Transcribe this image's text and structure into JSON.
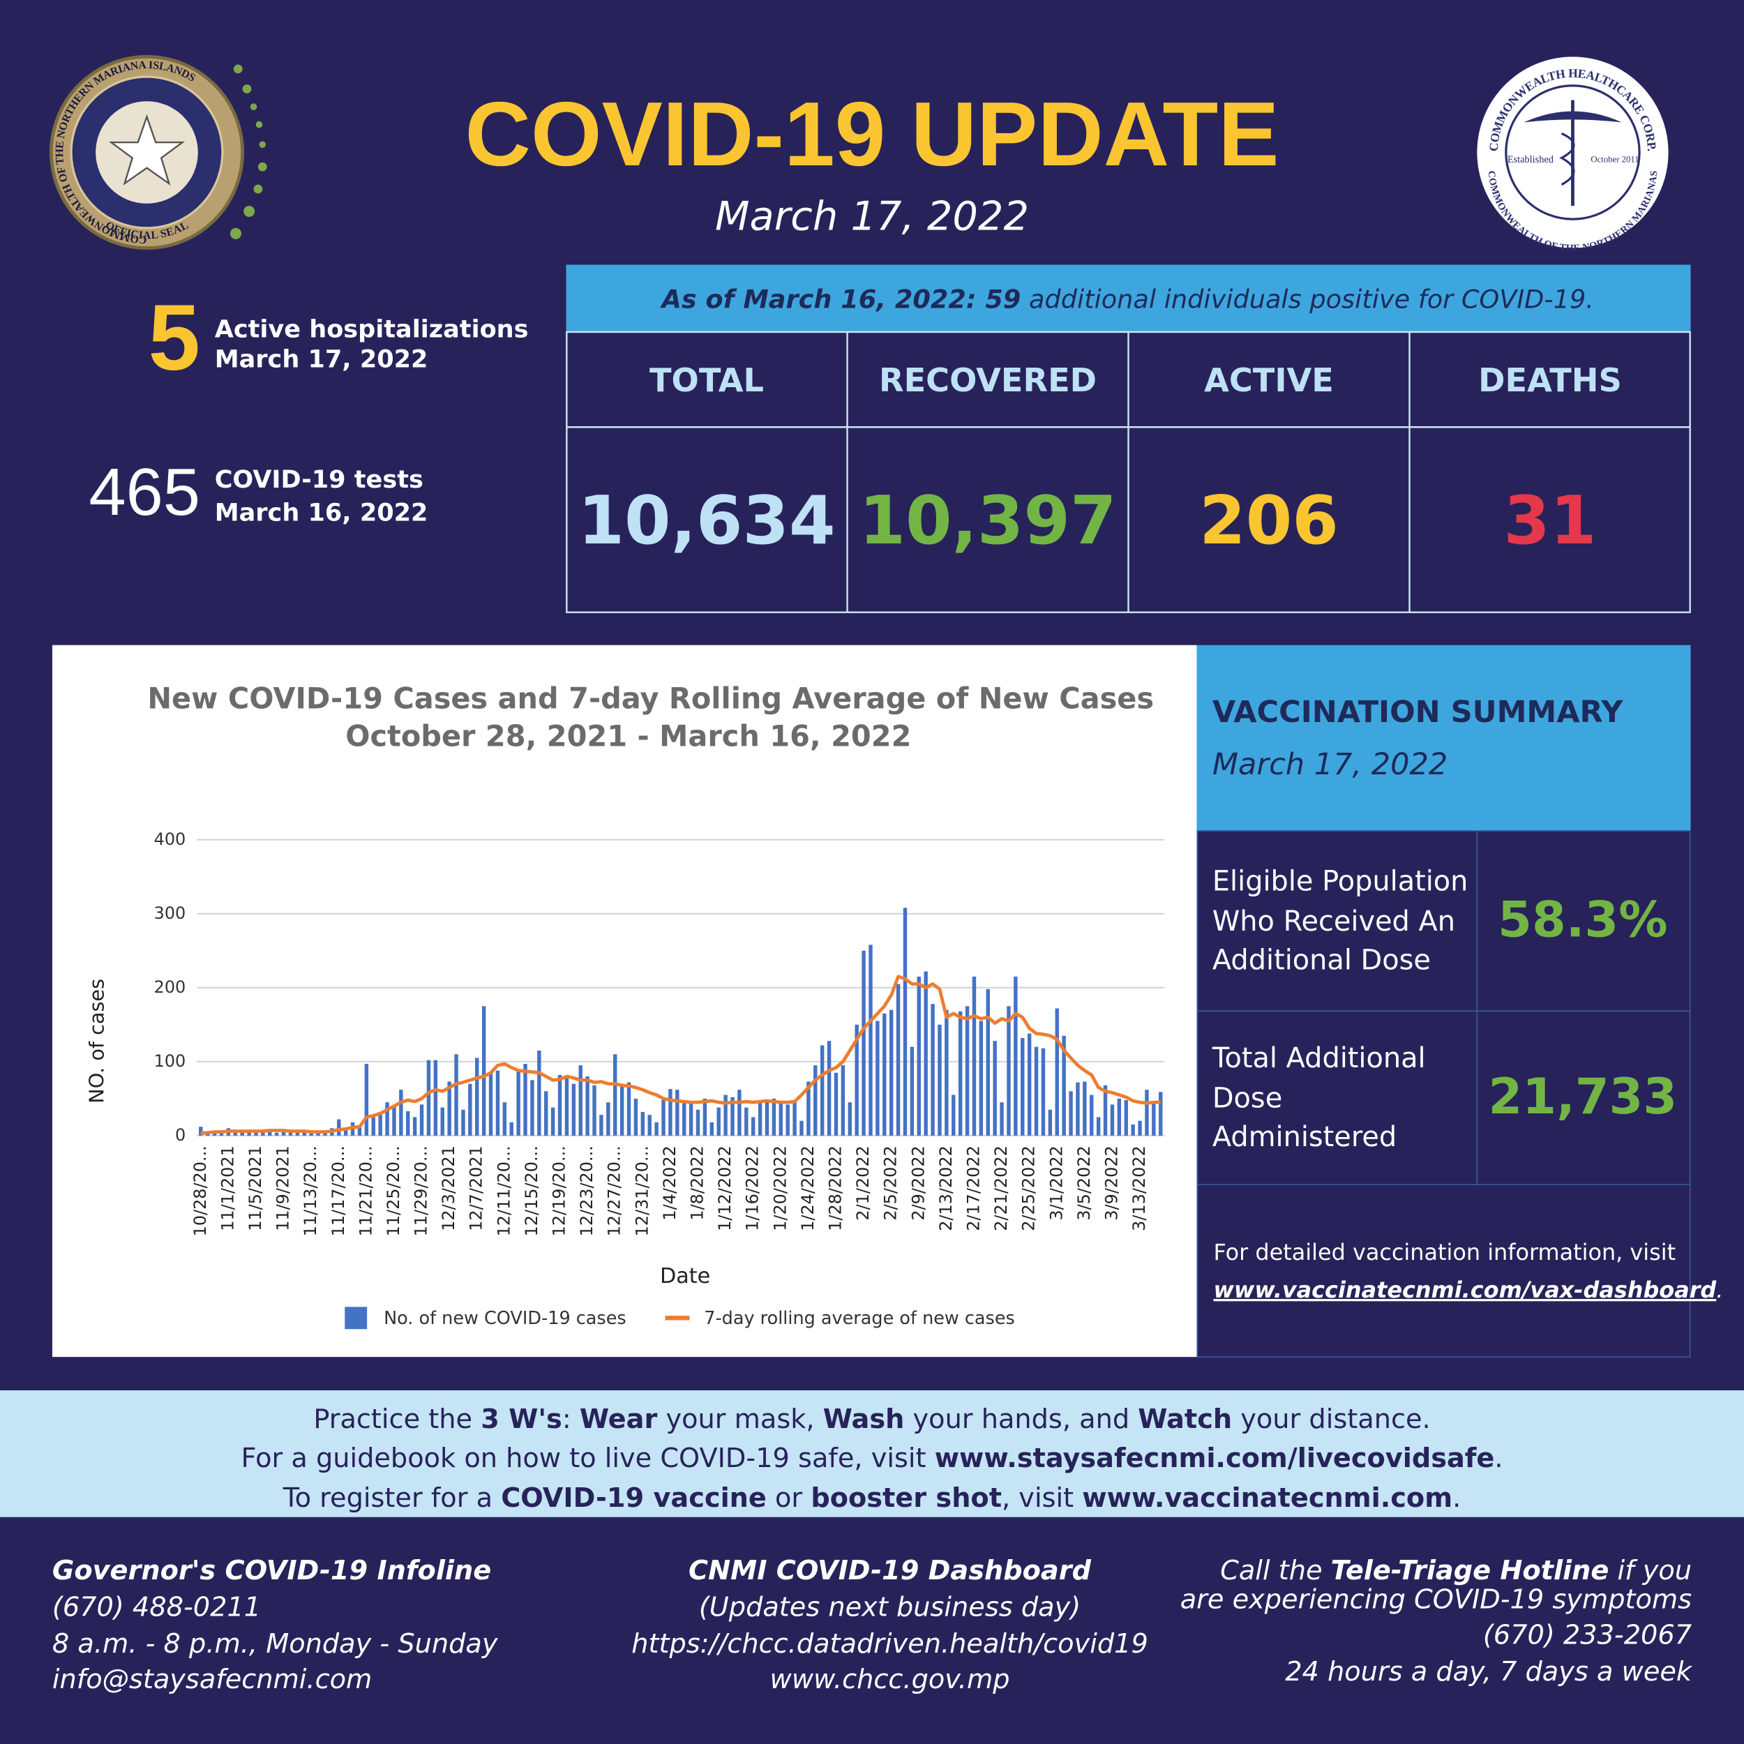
{
  "header": {
    "title": "COVID-19 UPDATE",
    "date": "March 17, 2022"
  },
  "seal_left": {
    "ring": "COMMONWEALTH OF THE NORTHERN MARIANA ISLANDS",
    "bottom": "OFFICIAL SEAL"
  },
  "seal_right": {
    "top": "COMMONWEALTH HEALTHCARE CORP.",
    "bottom": "COMMONWEALTH OF THE NORTHERN MARIANAS",
    "left": "Established",
    "right": "October 2011"
  },
  "hospitalizations": {
    "number": "5",
    "label": "Active hospitalizations",
    "date": "March 17, 2022"
  },
  "tests": {
    "number": "465",
    "label": "COVID-19 tests",
    "date": "March 16, 2022"
  },
  "banner": [
    {
      "text": "As of March 16, 2022: 59",
      "bold": true
    },
    {
      "text": " additional individuals positive for COVID-19."
    }
  ],
  "table": {
    "headers": [
      "TOTAL",
      "RECOVERED",
      "ACTIVE",
      "DEATHS"
    ],
    "values": [
      "10,634",
      "10,397",
      "206",
      "31"
    ],
    "colors": [
      "#bfe1f6",
      "#73b545",
      "#fbc531",
      "#e5384a"
    ]
  },
  "chart_data": {
    "type": "bar",
    "title": "New COVID-19 Cases and 7-day Rolling Average of New Cases",
    "subtitle": "October 28, 2021 - March 16, 2022",
    "xlabel": "Date",
    "ylabel": "NO. of cases",
    "ylim": [
      0,
      400
    ],
    "yticks": [
      0,
      100,
      200,
      300,
      400
    ],
    "grid": true,
    "categories": [
      "10/28/20...",
      null,
      null,
      null,
      "11/1/2021",
      null,
      null,
      null,
      "11/5/2021",
      null,
      null,
      null,
      "11/9/2021",
      null,
      null,
      null,
      "11/13/20...",
      null,
      null,
      null,
      "11/17/20...",
      null,
      null,
      null,
      "11/21/20...",
      null,
      null,
      null,
      "11/25/20...",
      null,
      null,
      null,
      "11/29/20...",
      null,
      null,
      null,
      "12/3/2021",
      null,
      null,
      null,
      "12/7/2021",
      null,
      null,
      null,
      "12/11/20...",
      null,
      null,
      null,
      "12/15/20...",
      null,
      null,
      null,
      "12/19/20...",
      null,
      null,
      null,
      "12/23/20...",
      null,
      null,
      null,
      "12/27/20...",
      null,
      null,
      null,
      "12/31/20...",
      null,
      null,
      null,
      "1/4/2022",
      null,
      null,
      null,
      "1/8/2022",
      null,
      null,
      null,
      "1/12/2022",
      null,
      null,
      null,
      "1/16/2022",
      null,
      null,
      null,
      "1/20/2022",
      null,
      null,
      null,
      "1/24/2022",
      null,
      null,
      null,
      "1/28/2022",
      null,
      null,
      null,
      "2/1/2022",
      null,
      null,
      null,
      "2/5/2022",
      null,
      null,
      null,
      "2/9/2022",
      null,
      null,
      null,
      "2/13/2022",
      null,
      null,
      null,
      "2/17/2022",
      null,
      null,
      null,
      "2/21/2022",
      null,
      null,
      null,
      "2/25/2022",
      null,
      null,
      null,
      "3/1/2022",
      null,
      null,
      null,
      "3/5/2022",
      null,
      null,
      null,
      "3/9/2022",
      null,
      null,
      null,
      "3/13/2022",
      null,
      null,
      null
    ],
    "series": [
      {
        "name": "No. of new COVID-19 cases",
        "type": "bar",
        "color": "#4472c4",
        "values": [
          12,
          2,
          3,
          5,
          10,
          4,
          6,
          5,
          8,
          5,
          6,
          4,
          8,
          7,
          5,
          4,
          3,
          4,
          6,
          10,
          22,
          8,
          18,
          12,
          97,
          25,
          32,
          45,
          40,
          62,
          33,
          25,
          42,
          102,
          102,
          38,
          73,
          110,
          35,
          70,
          105,
          175,
          85,
          88,
          45,
          18,
          90,
          97,
          75,
          115,
          60,
          38,
          82,
          78,
          70,
          95,
          80,
          68,
          28,
          45,
          110,
          70,
          72,
          50,
          32,
          28,
          18,
          48,
          63,
          62,
          48,
          45,
          35,
          50,
          18,
          38,
          55,
          52,
          62,
          38,
          25,
          45,
          48,
          50,
          45,
          42,
          45,
          20,
          73,
          95,
          122,
          128,
          85,
          95,
          45,
          150,
          250,
          258,
          155,
          165,
          170,
          205,
          308,
          120,
          215,
          222,
          178,
          150,
          170,
          55,
          168,
          175,
          215,
          155,
          198,
          128,
          45,
          175,
          215,
          132,
          138,
          120,
          118,
          35,
          172,
          135,
          60,
          72,
          73,
          55,
          25,
          68,
          42,
          50,
          48,
          15,
          20,
          62,
          45,
          59
        ]
      },
      {
        "name": "7-day rolling average of new cases",
        "type": "line",
        "color": "#ed7d31",
        "values": [
          3,
          4,
          5,
          5,
          6,
          6,
          6,
          6,
          6,
          6,
          7,
          7,
          7,
          6,
          6,
          6,
          5,
          5,
          5,
          6,
          8,
          9,
          11,
          12,
          25,
          27,
          30,
          35,
          40,
          45,
          48,
          46,
          50,
          58,
          62,
          60,
          65,
          70,
          72,
          75,
          78,
          80,
          85,
          95,
          97,
          92,
          88,
          87,
          86,
          85,
          80,
          75,
          76,
          80,
          78,
          75,
          75,
          72,
          73,
          70,
          70,
          68,
          67,
          65,
          62,
          58,
          55,
          50,
          48,
          47,
          46,
          45,
          45,
          46,
          47,
          45,
          44,
          45,
          45,
          46,
          45,
          46,
          47,
          46,
          45,
          45,
          46,
          55,
          65,
          75,
          82,
          88,
          92,
          100,
          115,
          130,
          145,
          155,
          165,
          175,
          190,
          215,
          212,
          205,
          205,
          200,
          205,
          198,
          160,
          165,
          160,
          158,
          162,
          158,
          160,
          152,
          158,
          155,
          165,
          160,
          145,
          138,
          137,
          135,
          130,
          115,
          105,
          95,
          88,
          82,
          65,
          60,
          58,
          55,
          52,
          47,
          45,
          44,
          45,
          45
        ]
      }
    ]
  },
  "vaccination": {
    "title": "VACCINATION SUMMARY",
    "date": "March 17, 2022",
    "rows": [
      {
        "label": [
          "Eligible Population",
          "Who Received An",
          "Additional Dose"
        ],
        "value": "58.3%"
      },
      {
        "label": [
          "Total Additional",
          "Dose",
          "Administered"
        ],
        "value": "21,733"
      }
    ],
    "note": "For detailed vaccination information, visit",
    "link": [
      {
        "text": "www.vaccinatecnmi.com/vax-dashboard",
        "bold": true,
        "underline": true
      },
      {
        "text": "."
      }
    ]
  },
  "tips": [
    [
      {
        "text": "Practice the "
      },
      {
        "text": "3 W's",
        "bold": true
      },
      {
        "text": ": "
      },
      {
        "text": "Wear",
        "bold": true
      },
      {
        "text": " your mask, "
      },
      {
        "text": "Wash",
        "bold": true
      },
      {
        "text": " your hands, and "
      },
      {
        "text": "Watch",
        "bold": true
      },
      {
        "text": " your distance."
      }
    ],
    [
      {
        "text": "For a guidebook on how to live COVID-19 safe, visit "
      },
      {
        "text": "www.staysafecnmi.com/livecovidsafe",
        "bold": true
      },
      {
        "text": "."
      }
    ],
    [
      {
        "text": "To register for a "
      },
      {
        "text": "COVID-19 vaccine",
        "bold": true
      },
      {
        "text": " or "
      },
      {
        "text": "booster shot",
        "bold": true
      },
      {
        "text": ", visit "
      },
      {
        "text": "www.vaccinatecnmi.com",
        "bold": true
      },
      {
        "text": "."
      }
    ]
  ],
  "footer": {
    "left": [
      [
        {
          "text": "Governor's COVID-19 Infoline",
          "bold": true
        }
      ],
      [
        {
          "text": "(670) 488-0211"
        }
      ],
      [
        {
          "text": "8 a.m. - 8 p.m., Monday - Sunday"
        }
      ],
      [
        {
          "text": "info@staysafecnmi.com"
        }
      ]
    ],
    "center": [
      [
        {
          "text": "CNMI COVID-19 Dashboard",
          "bold": true
        }
      ],
      [
        {
          "text": "(Updates next business day)"
        }
      ],
      [
        {
          "text": "https://chcc.datadriven.health/covid19"
        }
      ],
      [
        {
          "text": "www.chcc.gov.mp"
        }
      ]
    ],
    "right": [
      [
        {
          "text": "Call the "
        },
        {
          "text": "Tele-Triage Hotline",
          "bold": true
        },
        {
          "text": " if you"
        }
      ],
      [
        {
          "text": "are experiencing COVID-19 symptoms"
        }
      ],
      [
        {
          "text": "(670) 233-2067"
        }
      ],
      [
        {
          "text": "24 hours a day, 7 days a week"
        }
      ]
    ]
  }
}
